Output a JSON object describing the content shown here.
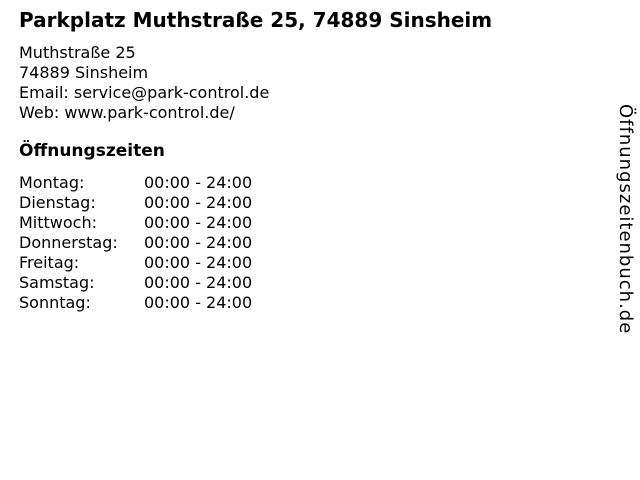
{
  "header": {
    "title": "Parkplatz Muthstraße 25, 74889 Sinsheim"
  },
  "address": {
    "street": "Muthstraße 25",
    "city": "74889 Sinsheim",
    "email_line": "Email: service@park-control.de",
    "web_line": "Web: www.park-control.de/"
  },
  "hours": {
    "heading": "Öffnungszeiten",
    "rows": [
      {
        "day": "Montag:",
        "time": "00:00 - 24:00"
      },
      {
        "day": "Dienstag:",
        "time": "00:00 - 24:00"
      },
      {
        "day": "Mittwoch:",
        "time": "00:00 - 24:00"
      },
      {
        "day": "Donnerstag:",
        "time": "00:00 - 24:00"
      },
      {
        "day": "Freitag:",
        "time": "00:00 - 24:00"
      },
      {
        "day": "Samstag:",
        "time": "00:00 - 24:00"
      },
      {
        "day": "Sonntag:",
        "time": "00:00 - 24:00"
      }
    ]
  },
  "watermark": {
    "text": "Öffnungszeitenbuch.de"
  },
  "colors": {
    "text": "#000000",
    "background": "#ffffff"
  }
}
